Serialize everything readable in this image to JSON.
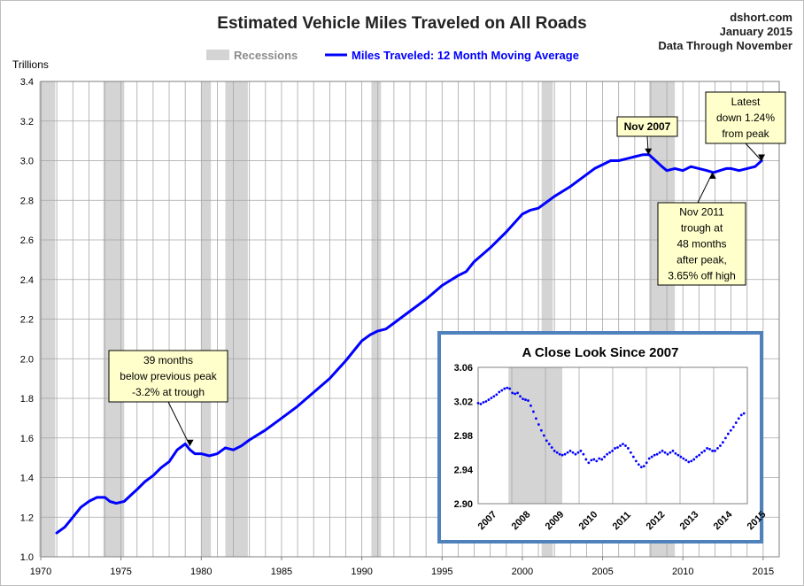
{
  "chart_data": {
    "type": "line",
    "title": "Estimated Vehicle Miles Traveled on All Roads",
    "source": [
      "dshort.com",
      "January 2015",
      "Data Through November"
    ],
    "ylabel": "Trillions",
    "ylim": [
      1.0,
      3.4
    ],
    "xlim": [
      1970,
      2016
    ],
    "grid": true,
    "x_ticks": [
      "1970",
      "1975",
      "1980",
      "1985",
      "1990",
      "1995",
      "2000",
      "2005",
      "2010",
      "2015"
    ],
    "y_ticks": [
      "1.0",
      "1.2",
      "1.4",
      "1.6",
      "1.8",
      "2.0",
      "2.2",
      "2.4",
      "2.6",
      "2.8",
      "3.0",
      "3.2",
      "3.4"
    ],
    "legend": {
      "placement": "top",
      "recessions_label": "Recessions",
      "series_label": "Miles Traveled: 12 Month Moving Average"
    },
    "colors": {
      "series": "#0000ff",
      "recession": "#d4d4d4",
      "inset_border": "#4f81bd",
      "callout_fill": "#ffffcc"
    },
    "recessions": [
      [
        1969.9,
        1970.9
      ],
      [
        1973.9,
        1975.2
      ],
      [
        1980.0,
        1980.6
      ],
      [
        1981.5,
        1982.9
      ],
      [
        1990.6,
        1991.2
      ],
      [
        2001.2,
        2001.9
      ],
      [
        2007.9,
        2009.5
      ]
    ],
    "series": [
      {
        "name": "Miles Traveled: 12 Month Moving Average",
        "x": [
          1971.0,
          1971.5,
          1972.0,
          1972.5,
          1973.0,
          1973.5,
          1974.0,
          1974.3,
          1974.7,
          1975.2,
          1975.6,
          1976.0,
          1976.5,
          1977.0,
          1977.5,
          1978.0,
          1978.5,
          1979.0,
          1979.3,
          1979.6,
          1980.0,
          1980.5,
          1981.0,
          1981.5,
          1982.0,
          1982.5,
          1983.0,
          1984.0,
          1985.0,
          1986.0,
          1987.0,
          1988.0,
          1989.0,
          1990.0,
          1990.5,
          1991.0,
          1991.5,
          1992.0,
          1993.0,
          1994.0,
          1995.0,
          1996.0,
          1996.5,
          1997.0,
          1998.0,
          1999.0,
          2000.0,
          2000.5,
          2001.0,
          2001.5,
          2002.0,
          2003.0,
          2004.0,
          2004.5,
          2005.0,
          2005.5,
          2006.0,
          2006.5,
          2007.0,
          2007.5,
          2007.9,
          2008.3,
          2008.7,
          2009.0,
          2009.5,
          2010.0,
          2010.5,
          2011.0,
          2011.5,
          2011.9,
          2012.3,
          2012.7,
          2013.0,
          2013.5,
          2014.0,
          2014.5,
          2014.9
        ],
        "values": [
          1.12,
          1.15,
          1.2,
          1.25,
          1.28,
          1.3,
          1.3,
          1.28,
          1.27,
          1.28,
          1.31,
          1.34,
          1.38,
          1.41,
          1.45,
          1.48,
          1.54,
          1.57,
          1.54,
          1.52,
          1.52,
          1.51,
          1.52,
          1.55,
          1.54,
          1.56,
          1.59,
          1.64,
          1.7,
          1.76,
          1.83,
          1.9,
          1.99,
          2.09,
          2.12,
          2.14,
          2.15,
          2.18,
          2.24,
          2.3,
          2.37,
          2.42,
          2.44,
          2.49,
          2.56,
          2.64,
          2.73,
          2.75,
          2.76,
          2.79,
          2.82,
          2.87,
          2.93,
          2.96,
          2.98,
          3.0,
          3.0,
          3.01,
          3.02,
          3.03,
          3.03,
          3.0,
          2.97,
          2.95,
          2.96,
          2.95,
          2.97,
          2.96,
          2.95,
          2.94,
          2.95,
          2.96,
          2.96,
          2.95,
          2.96,
          2.97,
          3.0
        ]
      }
    ],
    "annotations": [
      {
        "id": "peak",
        "lines": [
          "Nov 2007"
        ],
        "x": 2007.85,
        "y": 3.03
      },
      {
        "id": "latest",
        "lines": [
          "Latest",
          "down 1.24%",
          "from peak"
        ],
        "x": 2014.9,
        "y": 3.0
      },
      {
        "id": "trough",
        "lines": [
          "Nov 2011",
          "trough at",
          "48 months",
          "after peak,",
          "3.65% off high"
        ],
        "x": 2011.85,
        "y": 2.94
      },
      {
        "id": "early",
        "lines": [
          "39 months",
          "below previous peak",
          "-3.2% at trough"
        ],
        "x": 1979.3,
        "y": 1.56
      }
    ],
    "inset": {
      "type": "scatter",
      "title": "A Close Look Since 2007",
      "ylim": [
        2.9,
        3.06
      ],
      "xlim": [
        2007,
        2015
      ],
      "x_ticks": [
        "2007",
        "2008",
        "2009",
        "2010",
        "2011",
        "2012",
        "2013",
        "2014",
        "2015"
      ],
      "y_ticks": [
        "2.90",
        "2.94",
        "2.98",
        "3.02",
        "3.06"
      ],
      "recession": [
        2007.9,
        2009.5
      ],
      "values": [
        3.018,
        3.017,
        3.019,
        3.02,
        3.022,
        3.024,
        3.026,
        3.028,
        3.031,
        3.033,
        3.035,
        3.036,
        3.035,
        3.03,
        3.029,
        3.03,
        3.026,
        3.023,
        3.022,
        3.021,
        3.015,
        3.008,
        3.0,
        2.993,
        2.986,
        2.98,
        2.974,
        2.97,
        2.966,
        2.962,
        2.96,
        2.958,
        2.957,
        2.958,
        2.96,
        2.962,
        2.96,
        2.958,
        2.96,
        2.962,
        2.958,
        2.952,
        2.948,
        2.951,
        2.952,
        2.95,
        2.953,
        2.952,
        2.955,
        2.958,
        2.96,
        2.962,
        2.965,
        2.966,
        2.968,
        2.97,
        2.968,
        2.965,
        2.96,
        2.955,
        2.95,
        2.946,
        2.943,
        2.944,
        2.948,
        2.953,
        2.955,
        2.957,
        2.958,
        2.96,
        2.962,
        2.96,
        2.958,
        2.96,
        2.962,
        2.959,
        2.957,
        2.955,
        2.953,
        2.951,
        2.949,
        2.95,
        2.952,
        2.955,
        2.957,
        2.96,
        2.962,
        2.965,
        2.964,
        2.962,
        2.962,
        2.965,
        2.968,
        2.972,
        2.977,
        2.982,
        2.986,
        2.99,
        2.995,
        3.0,
        3.004,
        3.006
      ]
    }
  }
}
